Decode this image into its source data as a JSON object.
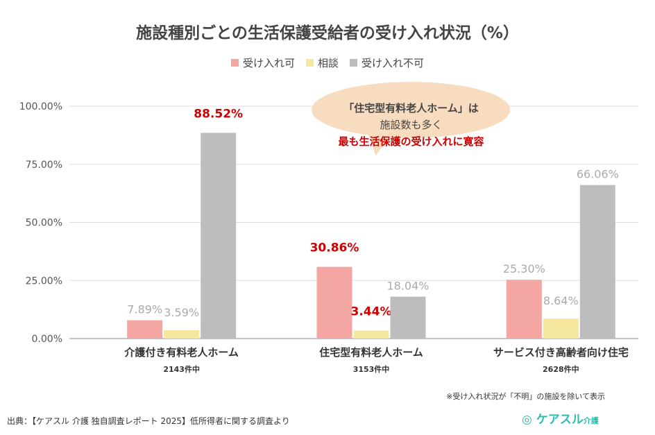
{
  "chart_data": {
    "type": "bar",
    "title": "施設種別ごとの生活保護受給者の受け入れ状況（%）",
    "categories": [
      "介護付き有料老人ホーム",
      "住宅型有料老人ホーム",
      "サービス付き高齢者向け住宅"
    ],
    "category_sublabels": [
      "2143件中",
      "3153件中",
      "2628件中"
    ],
    "series": [
      {
        "name": "受け入れ可",
        "color": "#f4a6a2",
        "values": [
          7.89,
          30.86,
          25.3
        ],
        "labels": [
          "7.89%",
          "30.86%",
          "25.30%"
        ],
        "highlight": [
          false,
          true,
          false
        ]
      },
      {
        "name": "相談",
        "color": "#f6e79e",
        "values": [
          3.59,
          3.44,
          8.64
        ],
        "labels": [
          "3.59%",
          "3.44%",
          "8.64%"
        ],
        "highlight": [
          false,
          true,
          false
        ]
      },
      {
        "name": "受け入れ不可",
        "color": "#bdbdbd",
        "values": [
          88.52,
          18.04,
          66.06
        ],
        "labels": [
          "88.52%",
          "18.04%",
          "66.06%"
        ],
        "highlight": [
          true,
          false,
          false
        ]
      }
    ],
    "yticks": [
      "0.00%",
      "25.00%",
      "50.00%",
      "75.00%",
      "100.00%"
    ],
    "ylim": [
      0,
      100
    ],
    "grid": true,
    "legend": "top",
    "highlight_color": "#cc0000"
  },
  "callout": {
    "line1": "「住宅型有料老人ホーム」は",
    "line2": "施設数も多く",
    "line3": "最も生活保護の受け入れに寛容",
    "color": "#f8dcc0"
  },
  "note": "※受け入れ状況が「不明」の施設を除いて表示",
  "source": "出典：【ケアスル 介護 独自調査レポート 2025】低所得者に関する調査より",
  "logo": {
    "text": "ケアスル",
    "sub": "介護"
  }
}
